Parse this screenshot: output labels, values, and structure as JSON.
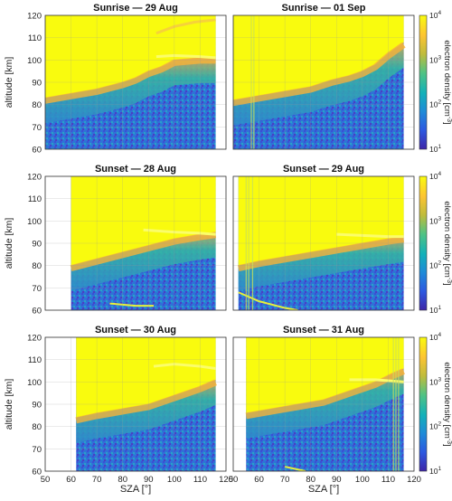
{
  "figure": {
    "xlabel": "SZA [°]",
    "ylabel": "altitude [km]",
    "colorbar_label_parts": [
      "electron density [cm",
      "-3",
      "]"
    ]
  },
  "colors": {
    "high": "#f9fb0e",
    "orange": "#f7b13a",
    "green": "#36b7a0",
    "blue_mid": "#2e8ccb",
    "blue_low": "#3b4fd6",
    "sky": "#5db6e8",
    "colormap": [
      "#3e26a8",
      "#2d58e0",
      "#1f8ad8",
      "#12b1b9",
      "#50c384",
      "#bfbc3c",
      "#fdc432",
      "#f9fb0e"
    ]
  },
  "chart_data": [
    {
      "type": "heatmap",
      "title": "Sunrise — 29 Aug",
      "xlim": [
        50,
        120
      ],
      "ylim": [
        60,
        120
      ],
      "xticks": [
        50,
        60,
        70,
        80,
        90,
        100,
        110,
        120
      ],
      "yticks": [
        60,
        70,
        80,
        90,
        100,
        110,
        120
      ],
      "x_range": [
        50,
        116
      ],
      "fill_boundary": [
        [
          50,
          83
        ],
        [
          60,
          85
        ],
        [
          70,
          87
        ],
        [
          80,
          90
        ],
        [
          85,
          92
        ],
        [
          90,
          95
        ],
        [
          95,
          97
        ],
        [
          100,
          100
        ],
        [
          110,
          101
        ],
        [
          116,
          101
        ]
      ],
      "bright_band": [
        [
          93,
          101.5
        ],
        [
          100,
          102
        ],
        [
          110,
          101.5
        ],
        [
          116,
          101
        ]
      ],
      "upper_band": [
        [
          93,
          112
        ],
        [
          100,
          115
        ],
        [
          108,
          117
        ],
        [
          116,
          118
        ]
      ]
    },
    {
      "type": "heatmap",
      "title": "Sunrise — 01 Sep",
      "xlim": [
        50,
        120
      ],
      "ylim": [
        60,
        120
      ],
      "xticks": [
        50,
        60,
        70,
        80,
        90,
        100,
        110,
        120
      ],
      "yticks": [
        60,
        70,
        80,
        90,
        100,
        110,
        120
      ],
      "x_range": [
        50,
        116
      ],
      "fill_boundary": [
        [
          50,
          82
        ],
        [
          60,
          84
        ],
        [
          70,
          86
        ],
        [
          80,
          88
        ],
        [
          88,
          91
        ],
        [
          95,
          93
        ],
        [
          100,
          95
        ],
        [
          105,
          98
        ],
        [
          110,
          103
        ],
        [
          116,
          108
        ]
      ],
      "vertical_lines": [
        57,
        58
      ]
    },
    {
      "type": "heatmap",
      "title": "Sunset — 28 Aug",
      "xlim": [
        50,
        120
      ],
      "ylim": [
        60,
        120
      ],
      "xticks": [
        50,
        60,
        70,
        80,
        90,
        100,
        110,
        120
      ],
      "yticks": [
        60,
        70,
        80,
        90,
        100,
        110,
        120
      ],
      "x_range": [
        60,
        116
      ],
      "fill_boundary": [
        [
          60,
          80
        ],
        [
          70,
          83
        ],
        [
          80,
          86
        ],
        [
          90,
          89
        ],
        [
          100,
          92
        ],
        [
          110,
          94
        ],
        [
          116,
          95
        ]
      ],
      "bright_band": [
        [
          88,
          96
        ],
        [
          100,
          95
        ],
        [
          110,
          94.5
        ],
        [
          116,
          94
        ]
      ],
      "low_band": [
        [
          75,
          63
        ],
        [
          85,
          62
        ],
        [
          92,
          62
        ]
      ]
    },
    {
      "type": "heatmap",
      "title": "Sunset — 29 Aug",
      "xlim": [
        50,
        120
      ],
      "ylim": [
        60,
        120
      ],
      "xticks": [
        50,
        60,
        70,
        80,
        90,
        100,
        110,
        120
      ],
      "yticks": [
        60,
        70,
        80,
        90,
        100,
        110,
        120
      ],
      "x_range": [
        52,
        116
      ],
      "fill_boundary": [
        [
          52,
          80
        ],
        [
          60,
          82
        ],
        [
          70,
          84
        ],
        [
          80,
          86
        ],
        [
          90,
          88
        ],
        [
          100,
          90
        ],
        [
          110,
          92
        ],
        [
          116,
          93
        ]
      ],
      "bright_band": [
        [
          90,
          94
        ],
        [
          100,
          93.5
        ],
        [
          110,
          93
        ],
        [
          116,
          93
        ]
      ],
      "vertical_lines": [
        55,
        56,
        57.5
      ],
      "low_band": [
        [
          52,
          68
        ],
        [
          60,
          64
        ],
        [
          70,
          61
        ],
        [
          75,
          60
        ]
      ]
    },
    {
      "type": "heatmap",
      "title": "Sunset — 30 Aug",
      "xlim": [
        50,
        120
      ],
      "ylim": [
        60,
        120
      ],
      "xticks": [
        50,
        60,
        70,
        80,
        90,
        100,
        110,
        120
      ],
      "yticks": [
        60,
        70,
        80,
        90,
        100,
        110,
        120
      ],
      "x_range": [
        62,
        116
      ],
      "fill_boundary": [
        [
          62,
          84
        ],
        [
          70,
          86
        ],
        [
          80,
          88
        ],
        [
          90,
          90
        ],
        [
          100,
          94
        ],
        [
          110,
          98
        ],
        [
          116,
          101
        ]
      ],
      "bright_band": [
        [
          92,
          107
        ],
        [
          100,
          108
        ],
        [
          110,
          107
        ],
        [
          116,
          106
        ]
      ]
    },
    {
      "type": "heatmap",
      "title": "Sunset — 31 Aug",
      "xlim": [
        50,
        120
      ],
      "ylim": [
        60,
        120
      ],
      "xticks": [
        50,
        60,
        70,
        80,
        90,
        100,
        110,
        120
      ],
      "yticks": [
        60,
        70,
        80,
        90,
        100,
        110,
        120
      ],
      "x_range": [
        55,
        116
      ],
      "fill_boundary": [
        [
          55,
          86
        ],
        [
          65,
          88
        ],
        [
          75,
          90
        ],
        [
          85,
          92
        ],
        [
          95,
          96
        ],
        [
          105,
          100
        ],
        [
          112,
          104
        ],
        [
          116,
          106
        ]
      ],
      "bright_band": [
        [
          95,
          101
        ],
        [
          105,
          101
        ],
        [
          116,
          100
        ]
      ],
      "vertical_lines": [
        112,
        113,
        114
      ],
      "low_band": [
        [
          70,
          62
        ],
        [
          78,
          60
        ]
      ]
    }
  ],
  "colorbar": {
    "ticks_exp": [
      1,
      2,
      3,
      4
    ],
    "tick_base": "10"
  }
}
